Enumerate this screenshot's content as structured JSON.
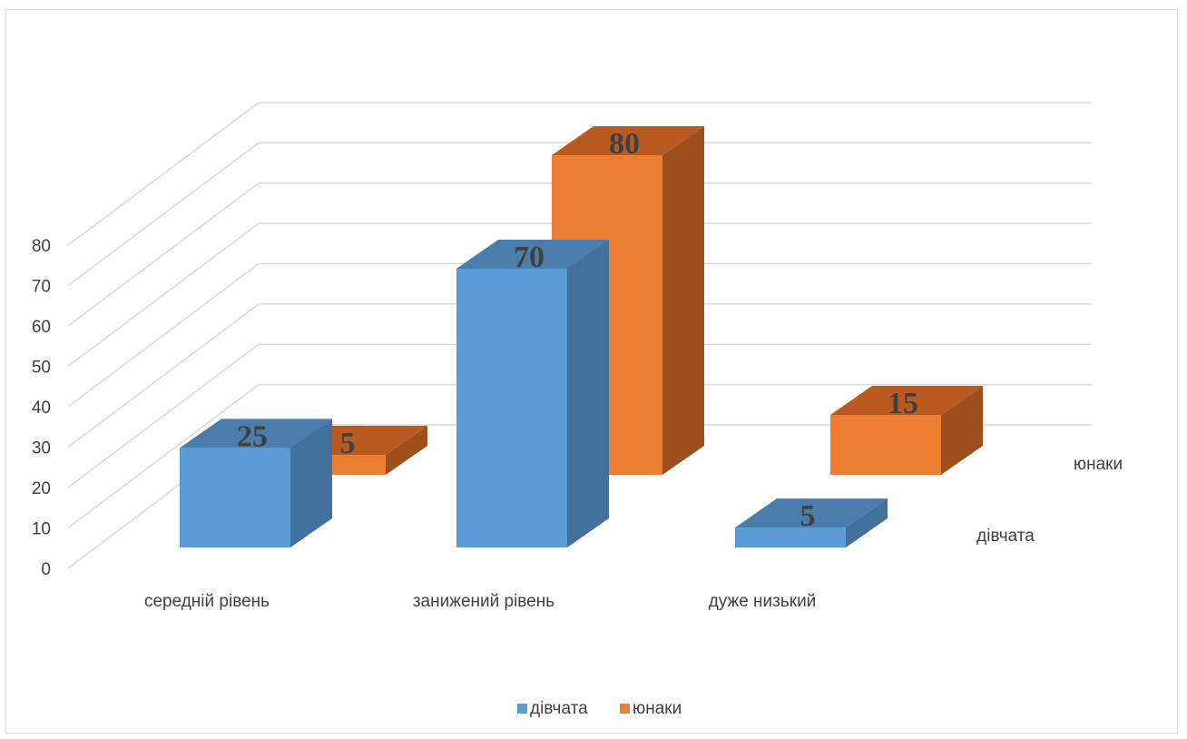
{
  "chart_data": {
    "type": "bar",
    "subtype": "3d-column",
    "categories": [
      "середній рівень",
      "занижений рівень",
      "дуже низький"
    ],
    "series": [
      {
        "name": "дівчата",
        "values": [
          25,
          70,
          5
        ],
        "color": "#5B9BD5",
        "side_color": "#41719C",
        "top_color": "#4A7DAB"
      },
      {
        "name": "юнаки",
        "values": [
          5,
          80,
          15
        ],
        "color": "#ED7D31",
        "side_color": "#9E4F1B",
        "top_color": "#B95B20"
      }
    ],
    "yticks": [
      0,
      10,
      20,
      30,
      40,
      50,
      60,
      70,
      80
    ],
    "ylim": [
      0,
      80
    ],
    "grid": true,
    "legend": {
      "position": "bottom",
      "entries": [
        "дівчата",
        "юнаки"
      ]
    },
    "series_axis_labels": [
      "дівчата",
      "юнаки"
    ],
    "data_labels": true
  }
}
